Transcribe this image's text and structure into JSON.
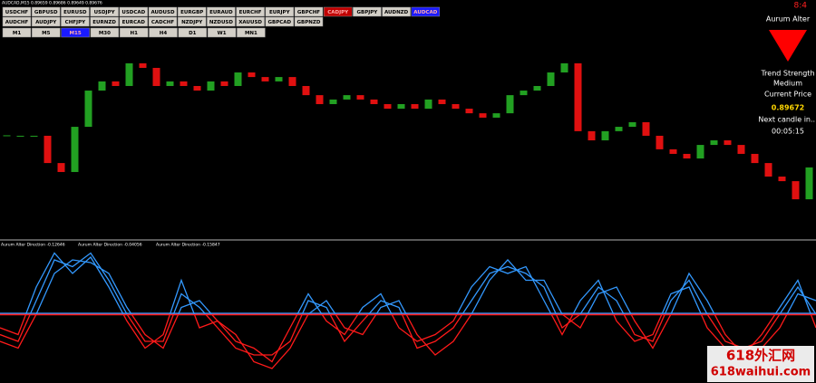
{
  "header": {
    "symbol_info": "AUDCAD,M15  0.89659 0.89686 0.89649 0.89676"
  },
  "symbols": [
    [
      {
        "label": "USDCHF"
      },
      {
        "label": "GBPUSD"
      },
      {
        "label": "EURUSD"
      },
      {
        "label": "USDJPY"
      },
      {
        "label": "USDCAD"
      },
      {
        "label": "AUDUSD"
      },
      {
        "label": "EURGBP"
      },
      {
        "label": "EURAUD"
      },
      {
        "label": "EURCHF"
      },
      {
        "label": "EURJPY"
      },
      {
        "label": "GBPCHF"
      },
      {
        "label": "CADJPY",
        "color": "#c00000"
      },
      {
        "label": "GBPJPY"
      },
      {
        "label": "AUDNZD"
      },
      {
        "label": "AUDCAD",
        "color": "#1a1aff"
      }
    ],
    [
      {
        "label": "AUDCHF"
      },
      {
        "label": "AUDJPY"
      },
      {
        "label": "CHFJPY"
      },
      {
        "label": "EURNZD"
      },
      {
        "label": "EURCAD"
      },
      {
        "label": "CADCHF"
      },
      {
        "label": "NZDJPY"
      },
      {
        "label": "NZDUSD"
      },
      {
        "label": "XAUUSD"
      },
      {
        "label": "GBPCAD"
      },
      {
        "label": "GBPNZD"
      }
    ]
  ],
  "timeframes": [
    {
      "label": "M1"
    },
    {
      "label": "M5"
    },
    {
      "label": "M15",
      "color": "#1a1aff"
    },
    {
      "label": "M30"
    },
    {
      "label": "H1"
    },
    {
      "label": "H4"
    },
    {
      "label": "D1"
    },
    {
      "label": "W1"
    },
    {
      "label": "MN1"
    }
  ],
  "panel": {
    "clock": "8:4",
    "name": "Aurum Alter",
    "strength_label": "Trend Strength",
    "strength": "Medium",
    "price_label": "Current Price",
    "price": "0.89672",
    "next_label": "Next candle in...",
    "countdown": "00:05:15"
  },
  "price_chart": {
    "ylim": [
      0.894,
      0.904
    ],
    "up_color": "#22a022",
    "down_color": "#e01010",
    "close": [
      0.89835,
      0.89835,
      0.89835,
      0.89704,
      0.89661,
      0.89878,
      0.90052,
      0.90096,
      0.90074,
      0.90183,
      0.90161,
      0.90074,
      0.90096,
      0.90074,
      0.90052,
      0.90096,
      0.90074,
      0.90139,
      0.90117,
      0.90096,
      0.90117,
      0.90074,
      0.9003,
      0.89987,
      0.90009,
      0.9003,
      0.90009,
      0.89987,
      0.89965,
      0.89987,
      0.89965,
      0.90009,
      0.89987,
      0.89965,
      0.89943,
      0.89922,
      0.89943,
      0.9003,
      0.90052,
      0.90074,
      0.90139,
      0.90183,
      0.89857,
      0.89813,
      0.89857,
      0.89878,
      0.899,
      0.89835,
      0.8977,
      0.89748,
      0.89726,
      0.89791,
      0.89813,
      0.89791,
      0.89748,
      0.89704,
      0.89639,
      0.89617,
      0.8953,
      0.89683
    ]
  },
  "indicator": {
    "labels": [
      "Aurum Alter Direction -0.12646",
      "Aurum Alter Direction -0.04056",
      "Aurum Alter Direction -0.15847"
    ],
    "ylim": [
      -0.5,
      0.5
    ],
    "positive_color": "#3399ff",
    "negative_color": "#ff1a1a",
    "series": [
      {
        "values": [
          -0.1,
          -0.15,
          0.2,
          0.45,
          0.3,
          0.42,
          0.2,
          -0.05,
          -0.25,
          -0.15,
          0.25,
          -0.1,
          -0.05,
          -0.2,
          -0.25,
          -0.35,
          -0.1,
          0.15,
          -0.05,
          -0.15,
          0.05,
          0.15,
          -0.1,
          -0.2,
          -0.15,
          -0.05,
          0.2,
          0.35,
          0.3,
          0.35,
          0.1,
          -0.15,
          0.1,
          0.25,
          -0.05,
          -0.2,
          -0.15,
          0.15,
          0.2,
          -0.1,
          -0.25,
          -0.3,
          -0.15,
          0.05,
          0.25,
          -0.1
        ]
      },
      {
        "values": [
          -0.15,
          -0.2,
          0.1,
          0.4,
          0.35,
          0.45,
          0.25,
          0.0,
          -0.2,
          -0.2,
          0.15,
          0.05,
          -0.1,
          -0.25,
          -0.3,
          -0.3,
          -0.2,
          0.1,
          0.05,
          -0.2,
          -0.05,
          0.1,
          0.05,
          -0.25,
          -0.2,
          -0.1,
          0.1,
          0.3,
          0.35,
          0.3,
          0.2,
          -0.1,
          0.0,
          0.2,
          0.1,
          -0.15,
          -0.2,
          0.1,
          0.25,
          0.0,
          -0.2,
          -0.25,
          -0.2,
          0.0,
          0.2,
          0.0
        ]
      },
      {
        "values": [
          -0.2,
          -0.25,
          0.0,
          0.3,
          0.4,
          0.38,
          0.3,
          0.05,
          -0.15,
          -0.25,
          0.05,
          0.1,
          -0.05,
          -0.15,
          -0.35,
          -0.4,
          -0.25,
          0.0,
          0.1,
          -0.1,
          -0.15,
          0.05,
          0.1,
          -0.15,
          -0.3,
          -0.2,
          0.0,
          0.25,
          0.4,
          0.25,
          0.25,
          0.0,
          -0.1,
          0.15,
          0.2,
          -0.05,
          -0.25,
          0.0,
          0.3,
          0.1,
          -0.15,
          -0.3,
          -0.25,
          -0.1,
          0.15,
          0.1
        ]
      }
    ]
  },
  "watermark": {
    "line1": "618外汇网",
    "line2": "618waihui.com"
  }
}
